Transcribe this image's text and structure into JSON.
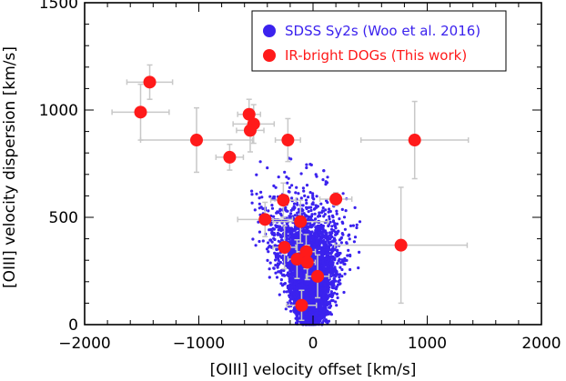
{
  "chart_data": {
    "type": "scatter",
    "xlabel": "[OIII] velocity offset [km/s]",
    "ylabel": "[OIII] velocity dispersion [km/s]",
    "xlim": [
      -2000,
      2000
    ],
    "ylim": [
      0,
      1500
    ],
    "xticks": [
      -2000,
      -1000,
      0,
      1000,
      2000
    ],
    "yticks": [
      0,
      500,
      1000,
      1500
    ],
    "xtick_labels": [
      "−2000",
      "−1000",
      "0",
      "1000",
      "2000"
    ],
    "ytick_labels": [
      "0",
      "500",
      "1000",
      "1500"
    ],
    "legend_position": "top-right",
    "series": [
      {
        "name": "SDSS Sy2s (Woo et al. 2016)",
        "color": "#3b22ee",
        "marker": "small-dot",
        "cloud": {
          "core_center": [
            -20,
            200
          ],
          "description": "dense cloud of many thousands of points",
          "extent_x": [
            -550,
            520
          ],
          "extent_y": [
            0,
            800
          ]
        }
      },
      {
        "name": "IR-bright DOGs (This work)",
        "color": "#ff1a1a",
        "errorbar_color": "#c8c8c8",
        "marker": "large-circle",
        "points": [
          {
            "x": -1430,
            "y": 1130,
            "xerr": 200,
            "yerr": 80
          },
          {
            "x": -1510,
            "y": 990,
            "xerr": 250,
            "yerr": 130
          },
          {
            "x": -560,
            "y": 980,
            "xerr": 100,
            "yerr": 70
          },
          {
            "x": -520,
            "y": 935,
            "xerr": 180,
            "yerr": 90
          },
          {
            "x": -550,
            "y": 905,
            "xerr": 120,
            "yerr": 100
          },
          {
            "x": -1020,
            "y": 860,
            "xerr": 490,
            "yerr": 150
          },
          {
            "x": -220,
            "y": 860,
            "xerr": 110,
            "yerr": 100
          },
          {
            "x": 890,
            "y": 860,
            "xerr": 470,
            "yerr": 180
          },
          {
            "x": -730,
            "y": 780,
            "xerr": 120,
            "yerr": 60
          },
          {
            "x": -260,
            "y": 580,
            "xerr": 110,
            "yerr": 80
          },
          {
            "x": 200,
            "y": 585,
            "xerr": 140,
            "yerr": 30
          },
          {
            "x": -420,
            "y": 490,
            "xerr": 240,
            "yerr": 80
          },
          {
            "x": -110,
            "y": 480,
            "xerr": 240,
            "yerr": 100
          },
          {
            "x": -250,
            "y": 360,
            "xerr": 100,
            "yerr": 100
          },
          {
            "x": 770,
            "y": 370,
            "xerr": 580,
            "yerr": 270
          },
          {
            "x": -60,
            "y": 340,
            "xerr": 80,
            "yerr": 80
          },
          {
            "x": -140,
            "y": 305,
            "xerr": 80,
            "yerr": 90
          },
          {
            "x": -50,
            "y": 290,
            "xerr": 70,
            "yerr": 80
          },
          {
            "x": 40,
            "y": 225,
            "xerr": 100,
            "yerr": 100
          },
          {
            "x": -100,
            "y": 90,
            "xerr": 130,
            "yerr": 70
          }
        ]
      }
    ]
  }
}
